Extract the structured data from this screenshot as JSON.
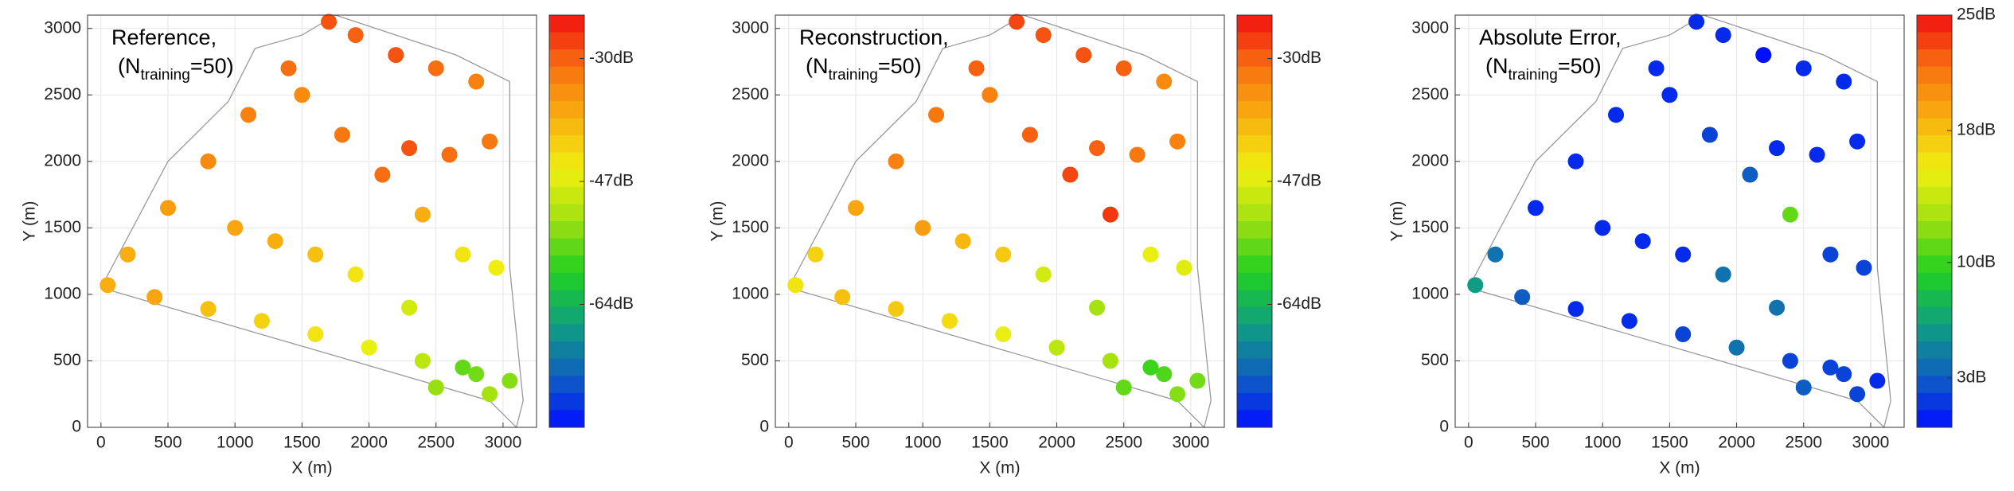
{
  "chart_data": [
    {
      "type": "scatter",
      "title": "Reference,",
      "annotation": {
        "base": "(N",
        "sub": "training",
        "tail": "=50)"
      },
      "x_label": "X (m)",
      "y_label": "Y (m)",
      "xlim": [
        -100,
        3250
      ],
      "ylim": [
        0,
        3100
      ],
      "xticks": [
        0,
        500,
        1000,
        1500,
        2000,
        2500,
        3000
      ],
      "yticks": [
        0,
        500,
        1000,
        1500,
        2000,
        2500,
        3000
      ],
      "grid": true,
      "colormap": [
        "#0010ff",
        "#1060c0",
        "#10a080",
        "#20d020",
        "#a0e010",
        "#f0f010",
        "#f8b010",
        "#f87010",
        "#f01010"
      ],
      "clim": [
        -81,
        -24
      ],
      "cticks": [
        {
          "value": -30,
          "label": "-30dB"
        },
        {
          "value": -47,
          "label": "-47dB"
        },
        {
          "value": -64,
          "label": "-64dB"
        }
      ],
      "x": [
        50,
        400,
        800,
        1200,
        1600,
        2000,
        2400,
        2800,
        3050,
        200,
        500,
        800,
        1100,
        1400,
        1700,
        1900,
        2200,
        2500,
        2800,
        1500,
        1800,
        2100,
        2400,
        2700,
        2950,
        2300,
        2600,
        2900,
        1000,
        1300,
        1600,
        1900,
        2500,
        2700,
        2900,
        2300
      ],
      "y": [
        1070,
        980,
        890,
        800,
        700,
        600,
        500,
        400,
        350,
        1300,
        1650,
        2000,
        2350,
        2700,
        3050,
        2950,
        2800,
        2700,
        2600,
        2500,
        2200,
        1900,
        1600,
        1300,
        1200,
        2100,
        2050,
        2150,
        1500,
        1400,
        1300,
        1150,
        300,
        450,
        250,
        900
      ],
      "values": [
        -38,
        -37,
        -40,
        -42,
        -44,
        -46,
        -50,
        -55,
        -54,
        -38,
        -36,
        -34,
        -33,
        -31,
        -29,
        -30,
        -29,
        -31,
        -33,
        -34,
        -32,
        -31,
        -38,
        -44,
        -45,
        -29,
        -31,
        -32,
        -37,
        -38,
        -40,
        -44,
        -53,
        -56,
        -52,
        -48
      ]
    },
    {
      "type": "scatter",
      "title": "Reconstruction,",
      "annotation": {
        "base": "(N",
        "sub": "training",
        "tail": "=50)"
      },
      "x_label": "X (m)",
      "y_label": "Y (m)",
      "xlim": [
        -100,
        3250
      ],
      "ylim": [
        0,
        3100
      ],
      "xticks": [
        0,
        500,
        1000,
        1500,
        2000,
        2500,
        3000
      ],
      "yticks": [
        0,
        500,
        1000,
        1500,
        2000,
        2500,
        3000
      ],
      "grid": true,
      "colormap": [
        "#0010ff",
        "#1060c0",
        "#10a080",
        "#20d020",
        "#a0e010",
        "#f0f010",
        "#f8b010",
        "#f87010",
        "#f01010"
      ],
      "clim": [
        -81,
        -24
      ],
      "cticks": [
        {
          "value": -30,
          "label": "-30dB"
        },
        {
          "value": -47,
          "label": "-47dB"
        },
        {
          "value": -64,
          "label": "-64dB"
        }
      ],
      "x": [
        50,
        400,
        800,
        1200,
        1600,
        2000,
        2400,
        2800,
        3050,
        200,
        500,
        800,
        1100,
        1400,
        1700,
        1900,
        2200,
        2500,
        2800,
        1500,
        1800,
        2100,
        2400,
        2700,
        2950,
        2300,
        2600,
        2900,
        1000,
        1300,
        1600,
        1900,
        2500,
        2700,
        2900,
        2300
      ],
      "y": [
        1070,
        980,
        890,
        800,
        700,
        600,
        500,
        400,
        350,
        1300,
        1650,
        2000,
        2350,
        2700,
        3050,
        2950,
        2800,
        2700,
        2600,
        2500,
        2200,
        1900,
        1600,
        1300,
        1200,
        2100,
        2050,
        2150,
        1500,
        1400,
        1300,
        1150,
        300,
        450,
        250,
        900
      ],
      "values": [
        -44,
        -40,
        -41,
        -43,
        -46,
        -50,
        -52,
        -57,
        -55,
        -42,
        -37,
        -33,
        -32,
        -30,
        -28,
        -29,
        -29,
        -30,
        -34,
        -33,
        -30,
        -28,
        -27,
        -46,
        -47,
        -30,
        -32,
        -33,
        -36,
        -39,
        -41,
        -48,
        -56,
        -58,
        -54,
        -52
      ]
    },
    {
      "type": "scatter",
      "title": "Absolute Error,",
      "annotation": {
        "base": "(N",
        "sub": "training",
        "tail": "=50)"
      },
      "x_label": "X (m)",
      "y_label": "Y (m)",
      "xlim": [
        -100,
        3250
      ],
      "ylim": [
        0,
        3100
      ],
      "xticks": [
        0,
        500,
        1000,
        1500,
        2000,
        2500,
        3000
      ],
      "yticks": [
        0,
        500,
        1000,
        1500,
        2000,
        2500,
        3000
      ],
      "grid": true,
      "colormap": [
        "#0010ff",
        "#1060c0",
        "#10a080",
        "#20d020",
        "#a0e010",
        "#f0f010",
        "#f8b010",
        "#f87010",
        "#f01010"
      ],
      "clim": [
        0,
        25
      ],
      "cticks": [
        {
          "value": 25,
          "label": "25dB"
        },
        {
          "value": 18,
          "label": "18dB"
        },
        {
          "value": 10,
          "label": "10dB"
        },
        {
          "value": 3,
          "label": "3dB"
        }
      ],
      "x": [
        50,
        400,
        800,
        1200,
        1600,
        2000,
        2400,
        2800,
        3050,
        200,
        500,
        800,
        1100,
        1400,
        1700,
        1900,
        2200,
        2500,
        2800,
        1500,
        1800,
        2100,
        2400,
        2700,
        2950,
        2300,
        2600,
        2900,
        1000,
        1300,
        1600,
        1900,
        2500,
        2700,
        2900,
        2300
      ],
      "y": [
        1070,
        980,
        890,
        800,
        700,
        600,
        500,
        400,
        350,
        1300,
        1650,
        2000,
        2350,
        2700,
        3050,
        2950,
        2800,
        2700,
        2600,
        2500,
        2200,
        1900,
        1600,
        1300,
        1200,
        2100,
        2050,
        2150,
        1500,
        1400,
        1300,
        1150,
        300,
        450,
        250,
        900
      ],
      "values": [
        6,
        3,
        1,
        1,
        2,
        4,
        2,
        2,
        1,
        4,
        1,
        1,
        1,
        1,
        1,
        1,
        0,
        1,
        1,
        1,
        2,
        3,
        11,
        2,
        2,
        1,
        1,
        1,
        1,
        1,
        1,
        4,
        3,
        2,
        2,
        4
      ]
    }
  ]
}
